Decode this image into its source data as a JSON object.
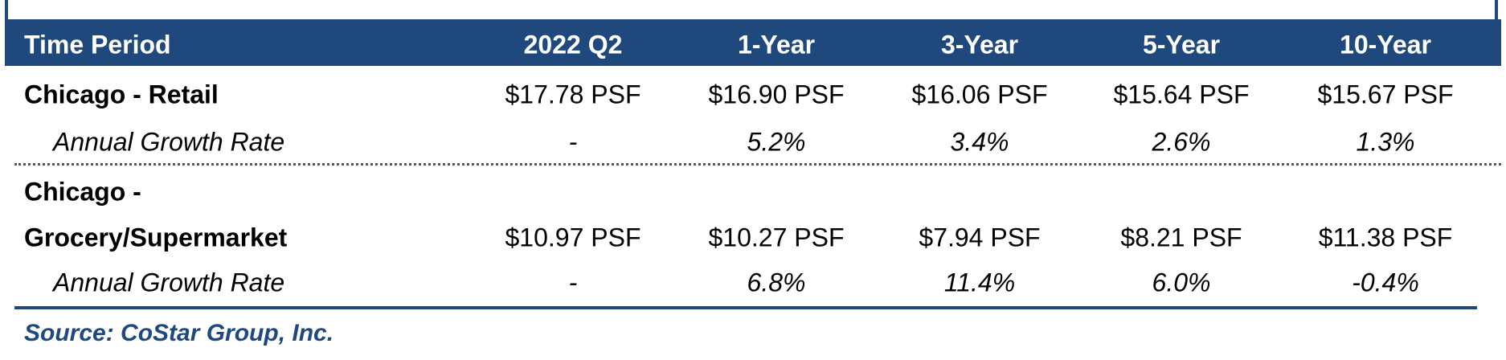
{
  "table": {
    "header": [
      "Time Period",
      "2022 Q2",
      "1-Year",
      "3-Year",
      "5-Year",
      "10-Year"
    ],
    "rows": [
      {
        "label": [
          "Chicago - Retail"
        ],
        "cells": [
          "$17.78 PSF",
          "$16.90 PSF",
          "$16.06 PSF",
          "$15.64 PSF",
          "$15.67 PSF"
        ]
      },
      {
        "label": [
          "Annual Growth Rate"
        ],
        "cells": [
          "-",
          "5.2%",
          "3.4%",
          "2.6%",
          "1.3%"
        ]
      },
      {
        "label": [
          "Chicago -",
          "Grocery/Supermarket"
        ],
        "cells": [
          "$10.97 PSF",
          "$10.27 PSF",
          "$7.94 PSF",
          "$8.21 PSF",
          "$11.38 PSF"
        ]
      },
      {
        "label": [
          "Annual Growth Rate"
        ],
        "cells": [
          "-",
          "6.8%",
          "11.4%",
          "6.0%",
          "-0.4%"
        ]
      }
    ]
  },
  "source": "Source:  CoStar Group, Inc."
}
